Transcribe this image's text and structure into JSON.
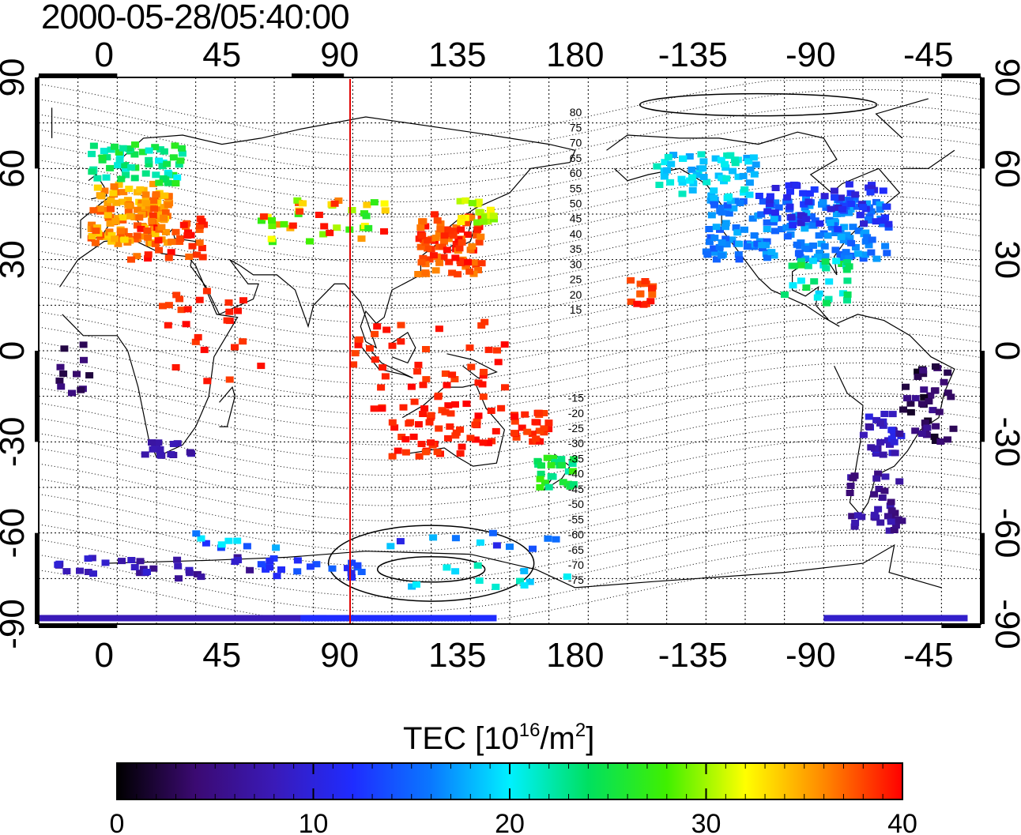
{
  "title": "2000-05-28/05:40:00",
  "lon_ticks": [
    "0",
    "45",
    "90",
    "135",
    "180",
    "-135",
    "-90",
    "-45"
  ],
  "lat_ticks": [
    "90",
    "60",
    "30",
    "0",
    "-30",
    "-60",
    "-90"
  ],
  "contour_labels_north": [
    "80",
    "75",
    "70",
    "65",
    "60",
    "55",
    "50",
    "45",
    "40",
    "35",
    "30",
    "25",
    "20",
    "15"
  ],
  "contour_labels_south": [
    "-15",
    "-20",
    "-25",
    "-30",
    "-35",
    "-40",
    "-45",
    "-50",
    "-55",
    "-60",
    "-65",
    "-70",
    "-75"
  ],
  "colorbar": {
    "title_main": "TEC  [10",
    "title_sup1": "16",
    "title_mid": "/m",
    "title_sup2": "2",
    "title_end": "]",
    "ticks": [
      "0",
      "10",
      "20",
      "30",
      "40"
    ],
    "range": [
      0,
      40
    ],
    "stops": [
      "#000000",
      "#3b0a72",
      "#3a1ab8",
      "#1f2cff",
      "#0a78ff",
      "#00f0ff",
      "#00e060",
      "#40f000",
      "#ffff00",
      "#ff8800",
      "#ff0000"
    ]
  },
  "terminator_longitude": 94,
  "terminator_color": "#e00000"
}
